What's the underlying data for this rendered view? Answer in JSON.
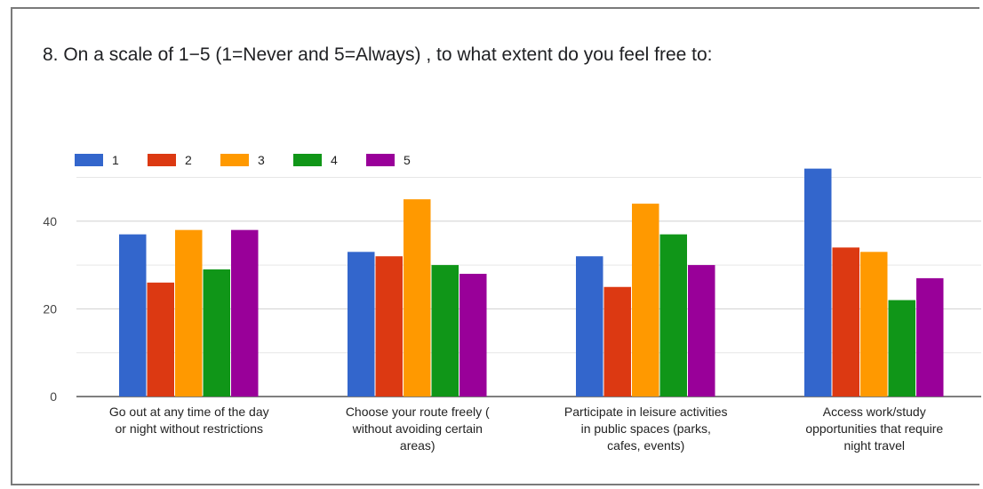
{
  "chart_data": {
    "type": "bar",
    "title": "8. On a scale of 1−5  (1=Never and 5=Always) , to what extent do you feel free to:",
    "categories": [
      [
        "Go out at any time of the day",
        "or night without restrictions"
      ],
      [
        "Choose your route freely (",
        "without avoiding certain",
        "areas)"
      ],
      [
        "Participate in leisure activities",
        "in public spaces (parks,",
        "cafes, events)"
      ],
      [
        "Access work/study",
        "opportunities that require",
        "night travel"
      ]
    ],
    "series": [
      {
        "name": "1",
        "color": "#3366cc",
        "values": [
          37,
          33,
          32,
          52
        ]
      },
      {
        "name": "2",
        "color": "#dc3912",
        "values": [
          26,
          32,
          25,
          34
        ]
      },
      {
        "name": "3",
        "color": "#ff9900",
        "values": [
          38,
          45,
          44,
          33
        ]
      },
      {
        "name": "4",
        "color": "#109618",
        "values": [
          29,
          30,
          37,
          22
        ]
      },
      {
        "name": "5",
        "color": "#990099",
        "values": [
          38,
          28,
          30,
          27
        ]
      }
    ],
    "y_ticks": [
      "0",
      "20",
      "40"
    ],
    "ylim": [
      0,
      50
    ],
    "legend": "top-left",
    "grid": true
  }
}
